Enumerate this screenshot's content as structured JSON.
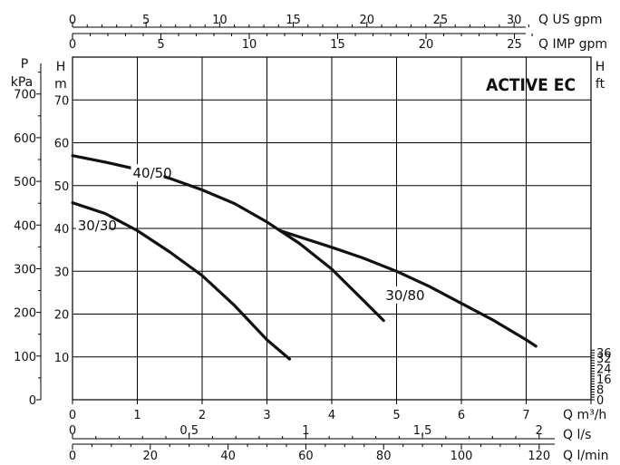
{
  "chart_data": {
    "type": "line",
    "title": "ACTIVE EC",
    "x_axes": {
      "us_gpm": {
        "label": "Q US gpm",
        "ticks": [
          "0",
          "5",
          "10",
          "15",
          "20",
          "25",
          "30"
        ]
      },
      "imp_gpm": {
        "label": "Q IMP gpm",
        "ticks": [
          "0",
          "5",
          "10",
          "15",
          "20",
          "25"
        ]
      },
      "m3h": {
        "label": "Q m³/h",
        "ticks": [
          "0",
          "1",
          "2",
          "3",
          "4",
          "5",
          "6",
          "7"
        ],
        "range": [
          0,
          8
        ]
      },
      "ls": {
        "label": "Q l/s",
        "ticks": [
          "0",
          "0,5",
          "1",
          "1,5",
          "2"
        ]
      },
      "lmin": {
        "label": "Q l/min",
        "ticks": [
          "0",
          "20",
          "40",
          "60",
          "80",
          "100",
          "120"
        ]
      }
    },
    "y_axes": {
      "kpa": {
        "label_top": "P",
        "label_bottom": "kPa",
        "ticks": [
          "0",
          "100",
          "200",
          "300",
          "400",
          "500",
          "600",
          "700"
        ]
      },
      "m": {
        "label_top": "H",
        "label_bottom": "m",
        "ticks": [
          "10",
          "20",
          "30",
          "40",
          "50",
          "60",
          "70"
        ],
        "range": [
          0,
          80
        ]
      },
      "ft": {
        "label_top": "H",
        "label_bottom": "ft",
        "ticks": [
          "0",
          "8",
          "16",
          "24",
          "32",
          "36"
        ]
      }
    },
    "grid": true,
    "series": [
      {
        "name": "40/50",
        "x": [
          0,
          0.5,
          1,
          1.5,
          2,
          2.5,
          3,
          3.5,
          4,
          4.5,
          4.8
        ],
        "y": [
          57,
          55.5,
          53.8,
          51.7,
          49,
          45.8,
          41.5,
          36.5,
          30.5,
          23,
          18.5
        ]
      },
      {
        "name": "30/30",
        "x": [
          0,
          0.5,
          1,
          1.5,
          2,
          2.5,
          3,
          3.35
        ],
        "y": [
          46,
          43.5,
          39.5,
          34.5,
          29,
          22,
          14,
          9.5
        ]
      },
      {
        "name": "30/80",
        "x": [
          3.2,
          3.5,
          4,
          4.5,
          5,
          5.5,
          6,
          6.5,
          7,
          7.15
        ],
        "y": [
          39.5,
          38,
          35.6,
          33,
          30,
          26.5,
          22.5,
          18.5,
          14,
          12.5
        ]
      }
    ]
  }
}
